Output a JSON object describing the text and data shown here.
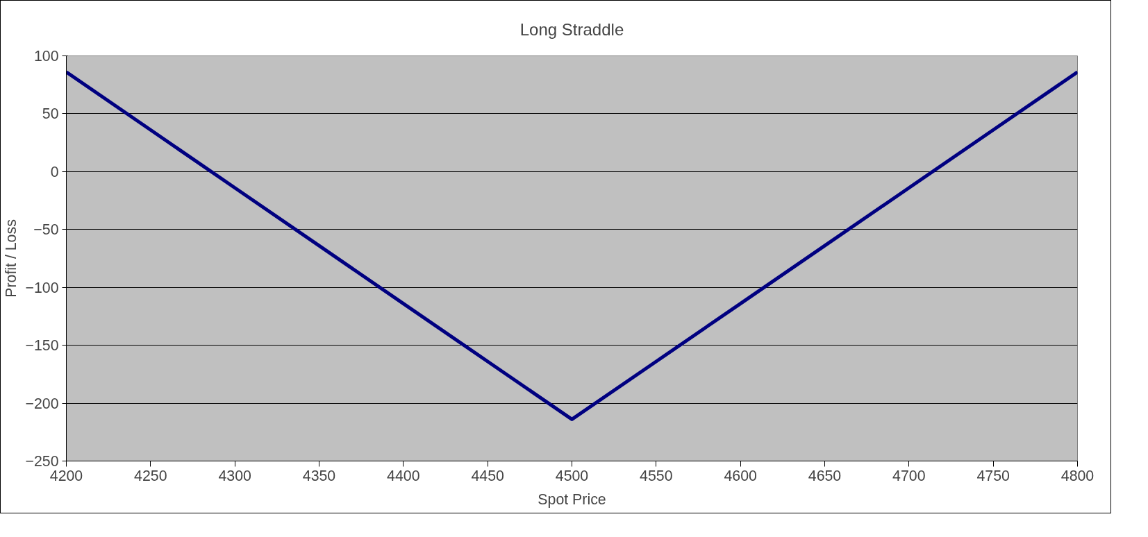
{
  "chart_data": {
    "type": "line",
    "title": "Long Straddle",
    "xlabel": "Spot Price",
    "ylabel": "Profit / Loss",
    "x": [
      4200,
      4250,
      4300,
      4350,
      4400,
      4450,
      4500,
      4550,
      4600,
      4650,
      4700,
      4750,
      4800
    ],
    "series": [
      {
        "color": "#000080",
        "values": [
          86,
          36,
          -14,
          -64,
          -114,
          -164,
          -214,
          -164,
          -114,
          -64,
          -14,
          36,
          86
        ]
      }
    ],
    "xlim": [
      4200,
      4800
    ],
    "xticks": [
      4200,
      4250,
      4300,
      4350,
      4400,
      4450,
      4500,
      4550,
      4600,
      4650,
      4700,
      4750,
      4800
    ],
    "ylim": [
      -250,
      100
    ],
    "yticks": [
      -250,
      -200,
      -150,
      -100,
      -50,
      0,
      50,
      100
    ],
    "grid": "y",
    "marker": "none",
    "line_style": "solid"
  }
}
